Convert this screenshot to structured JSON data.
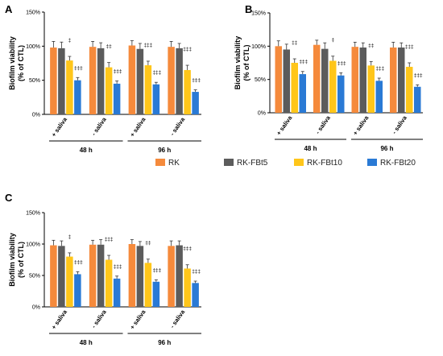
{
  "legend": [
    {
      "name": "RK",
      "color": "#F58A3C"
    },
    {
      "name": "RK-FBt5",
      "color": "#5C5C5C"
    },
    {
      "name": "RK-FBt10",
      "color": "#FFC61A"
    },
    {
      "name": "RK-FBt20",
      "color": "#2A7AD5"
    }
  ],
  "chart_data": [
    {
      "panel": "A",
      "type": "bar",
      "ylabel": "Biofilm viability\n(% of CTL)",
      "ylim": [
        0,
        150
      ],
      "yticks": [
        0,
        50,
        100,
        150
      ],
      "yticklabels": [
        "0%",
        "50%",
        "100%",
        "150%"
      ],
      "categories": [
        "+ saliva",
        "- saliva",
        "+ saliva",
        "- saliva"
      ],
      "groups": [
        {
          "label": "48 h",
          "span": [
            0,
            1
          ]
        },
        {
          "label": "96 h",
          "span": [
            2,
            3
          ]
        }
      ],
      "series": [
        {
          "name": "RK",
          "values": [
            98,
            99,
            101,
            99
          ],
          "errors": [
            9,
            8,
            7,
            8
          ]
        },
        {
          "name": "RK-FBt5",
          "values": [
            97,
            97,
            96,
            97
          ],
          "errors": [
            9,
            8,
            8,
            7
          ]
        },
        {
          "name": "RK-FBt10",
          "values": [
            79,
            69,
            72,
            65
          ],
          "errors": [
            6,
            7,
            6,
            7
          ]
        },
        {
          "name": "RK-FBt20",
          "values": [
            50,
            45,
            44,
            33
          ],
          "errors": [
            4,
            4,
            3,
            3
          ]
        }
      ],
      "annotations": [
        {
          "category": 0,
          "series": 2,
          "text": "‡"
        },
        {
          "category": 0,
          "series": 3,
          "text": "‡‡‡"
        },
        {
          "category": 1,
          "series": 2,
          "text": "‡‡"
        },
        {
          "category": 1,
          "series": 3,
          "text": "‡‡‡"
        },
        {
          "category": 2,
          "series": 2,
          "text": "‡‡‡"
        },
        {
          "category": 2,
          "series": 3,
          "text": "‡‡‡"
        },
        {
          "category": 3,
          "series": 2,
          "text": "‡‡‡"
        },
        {
          "category": 3,
          "series": 3,
          "text": "‡‡‡"
        }
      ]
    },
    {
      "panel": "B",
      "type": "bar",
      "ylabel": "Biofilm viability\n(% of CTL)",
      "ylim": [
        0,
        150
      ],
      "yticks": [
        0,
        50,
        100,
        150
      ],
      "yticklabels": [
        "0%",
        "50%",
        "100%",
        "150%"
      ],
      "categories": [
        "+ saliva",
        "- saliva",
        "+ saliva",
        "- saliva"
      ],
      "groups": [
        {
          "label": "48 h",
          "span": [
            0,
            1
          ]
        },
        {
          "label": "96 h",
          "span": [
            2,
            3
          ]
        }
      ],
      "series": [
        {
          "name": "RK",
          "values": [
            100,
            102,
            99,
            98
          ],
          "errors": [
            8,
            7,
            7,
            8
          ]
        },
        {
          "name": "RK-FBt5",
          "values": [
            95,
            96,
            98,
            98
          ],
          "errors": [
            8,
            9,
            7,
            7
          ]
        },
        {
          "name": "RK-FBt10",
          "values": [
            75,
            78,
            71,
            69
          ],
          "errors": [
            6,
            7,
            6,
            6
          ]
        },
        {
          "name": "RK-FBt20",
          "values": [
            58,
            56,
            48,
            39
          ],
          "errors": [
            4,
            4,
            4,
            3
          ]
        }
      ],
      "annotations": [
        {
          "category": 0,
          "series": 2,
          "text": "‡‡"
        },
        {
          "category": 0,
          "series": 3,
          "text": "‡‡‡"
        },
        {
          "category": 1,
          "series": 2,
          "text": "‡"
        },
        {
          "category": 1,
          "series": 3,
          "text": "‡‡‡"
        },
        {
          "category": 2,
          "series": 2,
          "text": "‡‡"
        },
        {
          "category": 2,
          "series": 3,
          "text": "‡‡‡"
        },
        {
          "category": 3,
          "series": 2,
          "text": "‡‡‡"
        },
        {
          "category": 3,
          "series": 3,
          "text": "‡‡‡"
        }
      ]
    },
    {
      "panel": "C",
      "type": "bar",
      "ylabel": "Biofilm viability\n(% of CTL)",
      "ylim": [
        0,
        150
      ],
      "yticks": [
        0,
        50,
        100,
        150
      ],
      "yticklabels": [
        "0%",
        "50%",
        "100%",
        "150%"
      ],
      "categories": [
        "+ saliva",
        "- saliva",
        "+ saliva",
        "- saliva"
      ],
      "groups": [
        {
          "label": "48 h",
          "span": [
            0,
            1
          ]
        },
        {
          "label": "96 h",
          "span": [
            2,
            3
          ]
        }
      ],
      "series": [
        {
          "name": "RK",
          "values": [
            98,
            99,
            100,
            97
          ],
          "errors": [
            8,
            7,
            7,
            8
          ]
        },
        {
          "name": "RK-FBt5",
          "values": [
            97,
            99,
            97,
            98
          ],
          "errors": [
            8,
            8,
            7,
            7
          ]
        },
        {
          "name": "RK-FBt10",
          "values": [
            80,
            75,
            70,
            61
          ],
          "errors": [
            6,
            7,
            6,
            6
          ]
        },
        {
          "name": "RK-FBt20",
          "values": [
            52,
            45,
            40,
            38
          ],
          "errors": [
            4,
            4,
            3,
            3
          ]
        }
      ],
      "annotations": [
        {
          "category": 0,
          "series": 2,
          "text": "‡"
        },
        {
          "category": 0,
          "series": 3,
          "text": "‡‡‡"
        },
        {
          "category": 1,
          "series": 2,
          "text": "‡‡‡"
        },
        {
          "category": 1,
          "series": 3,
          "text": "‡‡‡"
        },
        {
          "category": 2,
          "series": 2,
          "text": "‡‡"
        },
        {
          "category": 2,
          "series": 3,
          "text": "‡‡‡"
        },
        {
          "category": 3,
          "series": 2,
          "text": "‡‡‡"
        },
        {
          "category": 3,
          "series": 3,
          "text": "‡‡‡"
        }
      ]
    }
  ]
}
